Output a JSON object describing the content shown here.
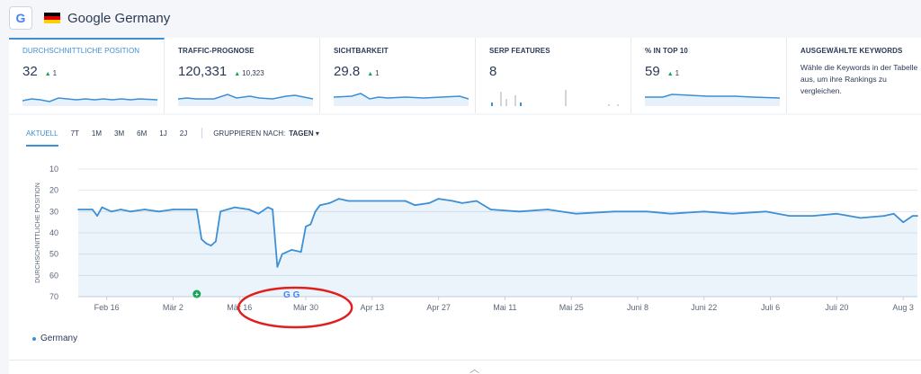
{
  "header": {
    "g_icon": "G",
    "flag_icon": "german-flag-icon",
    "title": "Google Germany"
  },
  "cards": [
    {
      "label": "DURCHSCHNITTLICHE POSITION",
      "value": "32",
      "delta": "1"
    },
    {
      "label": "TRAFFIC-PROGNOSE",
      "value": "120,331",
      "delta": "10,323"
    },
    {
      "label": "SICHTBARKEIT",
      "value": "29.8",
      "delta": "1"
    },
    {
      "label": "SERP FEATURES",
      "value": "8"
    },
    {
      "label": "% IN TOP 10",
      "value": "59",
      "delta": "1"
    },
    {
      "label": "AUSGEWÄHLTE KEYWORDS",
      "text": "Wähle die Keywords in der Tabelle aus, um ihre Rankings zu vergleichen."
    }
  ],
  "tabs": {
    "items": [
      "AKTUELL",
      "7T",
      "1M",
      "3M",
      "6M",
      "1J",
      "2J"
    ],
    "group_label": "GRUPPIEREN NACH:",
    "group_value": "TAGEN"
  },
  "colors": {
    "accent": "#3d8fd6",
    "positive": "#19a35a",
    "annotation": "#e01f1f"
  },
  "chart_data": {
    "type": "area",
    "ylabel": "DURCHSCHNITTLICHE POSITION",
    "yticks": [
      10,
      20,
      30,
      40,
      50,
      60,
      70
    ],
    "ylim": [
      10,
      70
    ],
    "y_reversed": true,
    "xticks": [
      "Feb 16",
      "Mär 2",
      "Mär 16",
      "Mär 30",
      "Apr 13",
      "Apr 27",
      "Mai 11",
      "Mai 25",
      "Juni 8",
      "Juni 22",
      "Juli 6",
      "Juli 20",
      "Aug 3"
    ],
    "xlim": [
      "Feb 10",
      "Aug 6"
    ],
    "legend": [
      "Germany"
    ],
    "markers": [
      {
        "type": "plus",
        "date": "Mär 7"
      },
      {
        "type": "google-update",
        "date": "Mär 26"
      },
      {
        "type": "google-update",
        "date": "Mär 28"
      }
    ],
    "series": [
      {
        "name": "Germany",
        "points": [
          [
            "Feb 10",
            29
          ],
          [
            "Feb 13",
            29
          ],
          [
            "Feb 14",
            32
          ],
          [
            "Feb 15",
            28
          ],
          [
            "Feb 17",
            30
          ],
          [
            "Feb 19",
            29
          ],
          [
            "Feb 21",
            30
          ],
          [
            "Feb 24",
            29
          ],
          [
            "Feb 27",
            30
          ],
          [
            "Mär 2",
            29
          ],
          [
            "Mär 7",
            29
          ],
          [
            "Mär 8",
            43
          ],
          [
            "Mär 9",
            45
          ],
          [
            "Mär 10",
            46
          ],
          [
            "Mär 11",
            44
          ],
          [
            "Mär 12",
            30
          ],
          [
            "Mär 15",
            28
          ],
          [
            "Mär 18",
            29
          ],
          [
            "Mär 20",
            31
          ],
          [
            "Mär 22",
            28
          ],
          [
            "Mär 23",
            29
          ],
          [
            "Mär 24",
            56
          ],
          [
            "Mär 25",
            50
          ],
          [
            "Mär 27",
            48
          ],
          [
            "Mär 29",
            49
          ],
          [
            "Mär 30",
            37
          ],
          [
            "Mär 31",
            36
          ],
          [
            "Apr 1",
            30
          ],
          [
            "Apr 2",
            27
          ],
          [
            "Apr 4",
            26
          ],
          [
            "Apr 6",
            24
          ],
          [
            "Apr 8",
            25
          ],
          [
            "Apr 20",
            25
          ],
          [
            "Apr 22",
            27
          ],
          [
            "Apr 25",
            26
          ],
          [
            "Apr 27",
            24
          ],
          [
            "Apr 30",
            25
          ],
          [
            "Mai 2",
            26
          ],
          [
            "Mai 5",
            25
          ],
          [
            "Mai 8",
            29
          ],
          [
            "Mai 14",
            30
          ],
          [
            "Mai 20",
            29
          ],
          [
            "Mai 26",
            31
          ],
          [
            "Juni 3",
            30
          ],
          [
            "Juni 10",
            30
          ],
          [
            "Juni 15",
            31
          ],
          [
            "Juni 22",
            30
          ],
          [
            "Juni 28",
            31
          ],
          [
            "Juli 5",
            30
          ],
          [
            "Juli 10",
            32
          ],
          [
            "Juli 15",
            32
          ],
          [
            "Juli 20",
            31
          ],
          [
            "Juli 25",
            33
          ],
          [
            "Juli 30",
            32
          ],
          [
            "Aug 1",
            31
          ],
          [
            "Aug 3",
            35
          ],
          [
            "Aug 5",
            32
          ],
          [
            "Aug 6",
            32
          ]
        ]
      }
    ]
  }
}
